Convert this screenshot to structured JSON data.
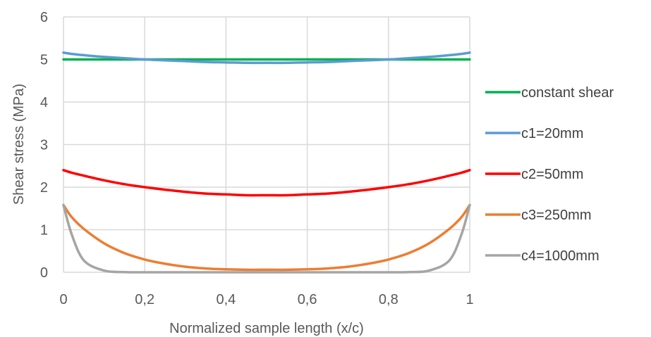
{
  "chart_data": {
    "type": "line",
    "title": "",
    "xlabel": "Normalized sample length (x/c)",
    "ylabel": "Shear stress (MPa)",
    "xlim": [
      0,
      1
    ],
    "ylim": [
      0,
      6
    ],
    "x_ticks": [
      "0",
      "0,2",
      "0,4",
      "0,6",
      "0,8",
      "1"
    ],
    "y_ticks": [
      "0",
      "1",
      "2",
      "3",
      "4",
      "5",
      "6"
    ],
    "grid": "vertical and horizontal",
    "legend_position": "right",
    "x": [
      0,
      0.02,
      0.05,
      0.1,
      0.15,
      0.2,
      0.25,
      0.3,
      0.35,
      0.4,
      0.45,
      0.5,
      0.55,
      0.6,
      0.65,
      0.7,
      0.75,
      0.8,
      0.85,
      0.9,
      0.95,
      0.98,
      1
    ],
    "series": [
      {
        "name": "constant shear",
        "color": "#00b050",
        "values": [
          5,
          5,
          5,
          5,
          5,
          5,
          5,
          5,
          5,
          5,
          5,
          5,
          5,
          5,
          5,
          5,
          5,
          5,
          5,
          5,
          5,
          5,
          5
        ]
      },
      {
        "name": "c1=20mm",
        "color": "#5b9bd5",
        "values": [
          5.16,
          5.13,
          5.1,
          5.06,
          5.03,
          5.0,
          4.98,
          4.96,
          4.94,
          4.93,
          4.92,
          4.92,
          4.92,
          4.93,
          4.94,
          4.96,
          4.98,
          5.0,
          5.03,
          5.06,
          5.1,
          5.13,
          5.16
        ]
      },
      {
        "name": "c2=50mm",
        "color": "#ff0000",
        "values": [
          2.4,
          2.34,
          2.27,
          2.16,
          2.07,
          2.0,
          1.94,
          1.89,
          1.85,
          1.83,
          1.81,
          1.81,
          1.81,
          1.83,
          1.85,
          1.89,
          1.94,
          2.0,
          2.07,
          2.16,
          2.27,
          2.34,
          2.4
        ]
      },
      {
        "name": "c3=250mm",
        "color": "#ed7d31",
        "values": [
          1.58,
          1.3,
          1.02,
          0.68,
          0.45,
          0.3,
          0.2,
          0.13,
          0.09,
          0.07,
          0.06,
          0.06,
          0.06,
          0.07,
          0.09,
          0.13,
          0.2,
          0.3,
          0.45,
          0.68,
          1.02,
          1.3,
          1.58
        ]
      },
      {
        "name": "c4=1000mm",
        "color": "#a5a5a5",
        "values": [
          1.58,
          0.9,
          0.28,
          0.04,
          0.005,
          0,
          0,
          0,
          0,
          0,
          0,
          0,
          0,
          0,
          0,
          0,
          0,
          0,
          0.005,
          0.04,
          0.28,
          0.9,
          1.58
        ]
      }
    ]
  }
}
